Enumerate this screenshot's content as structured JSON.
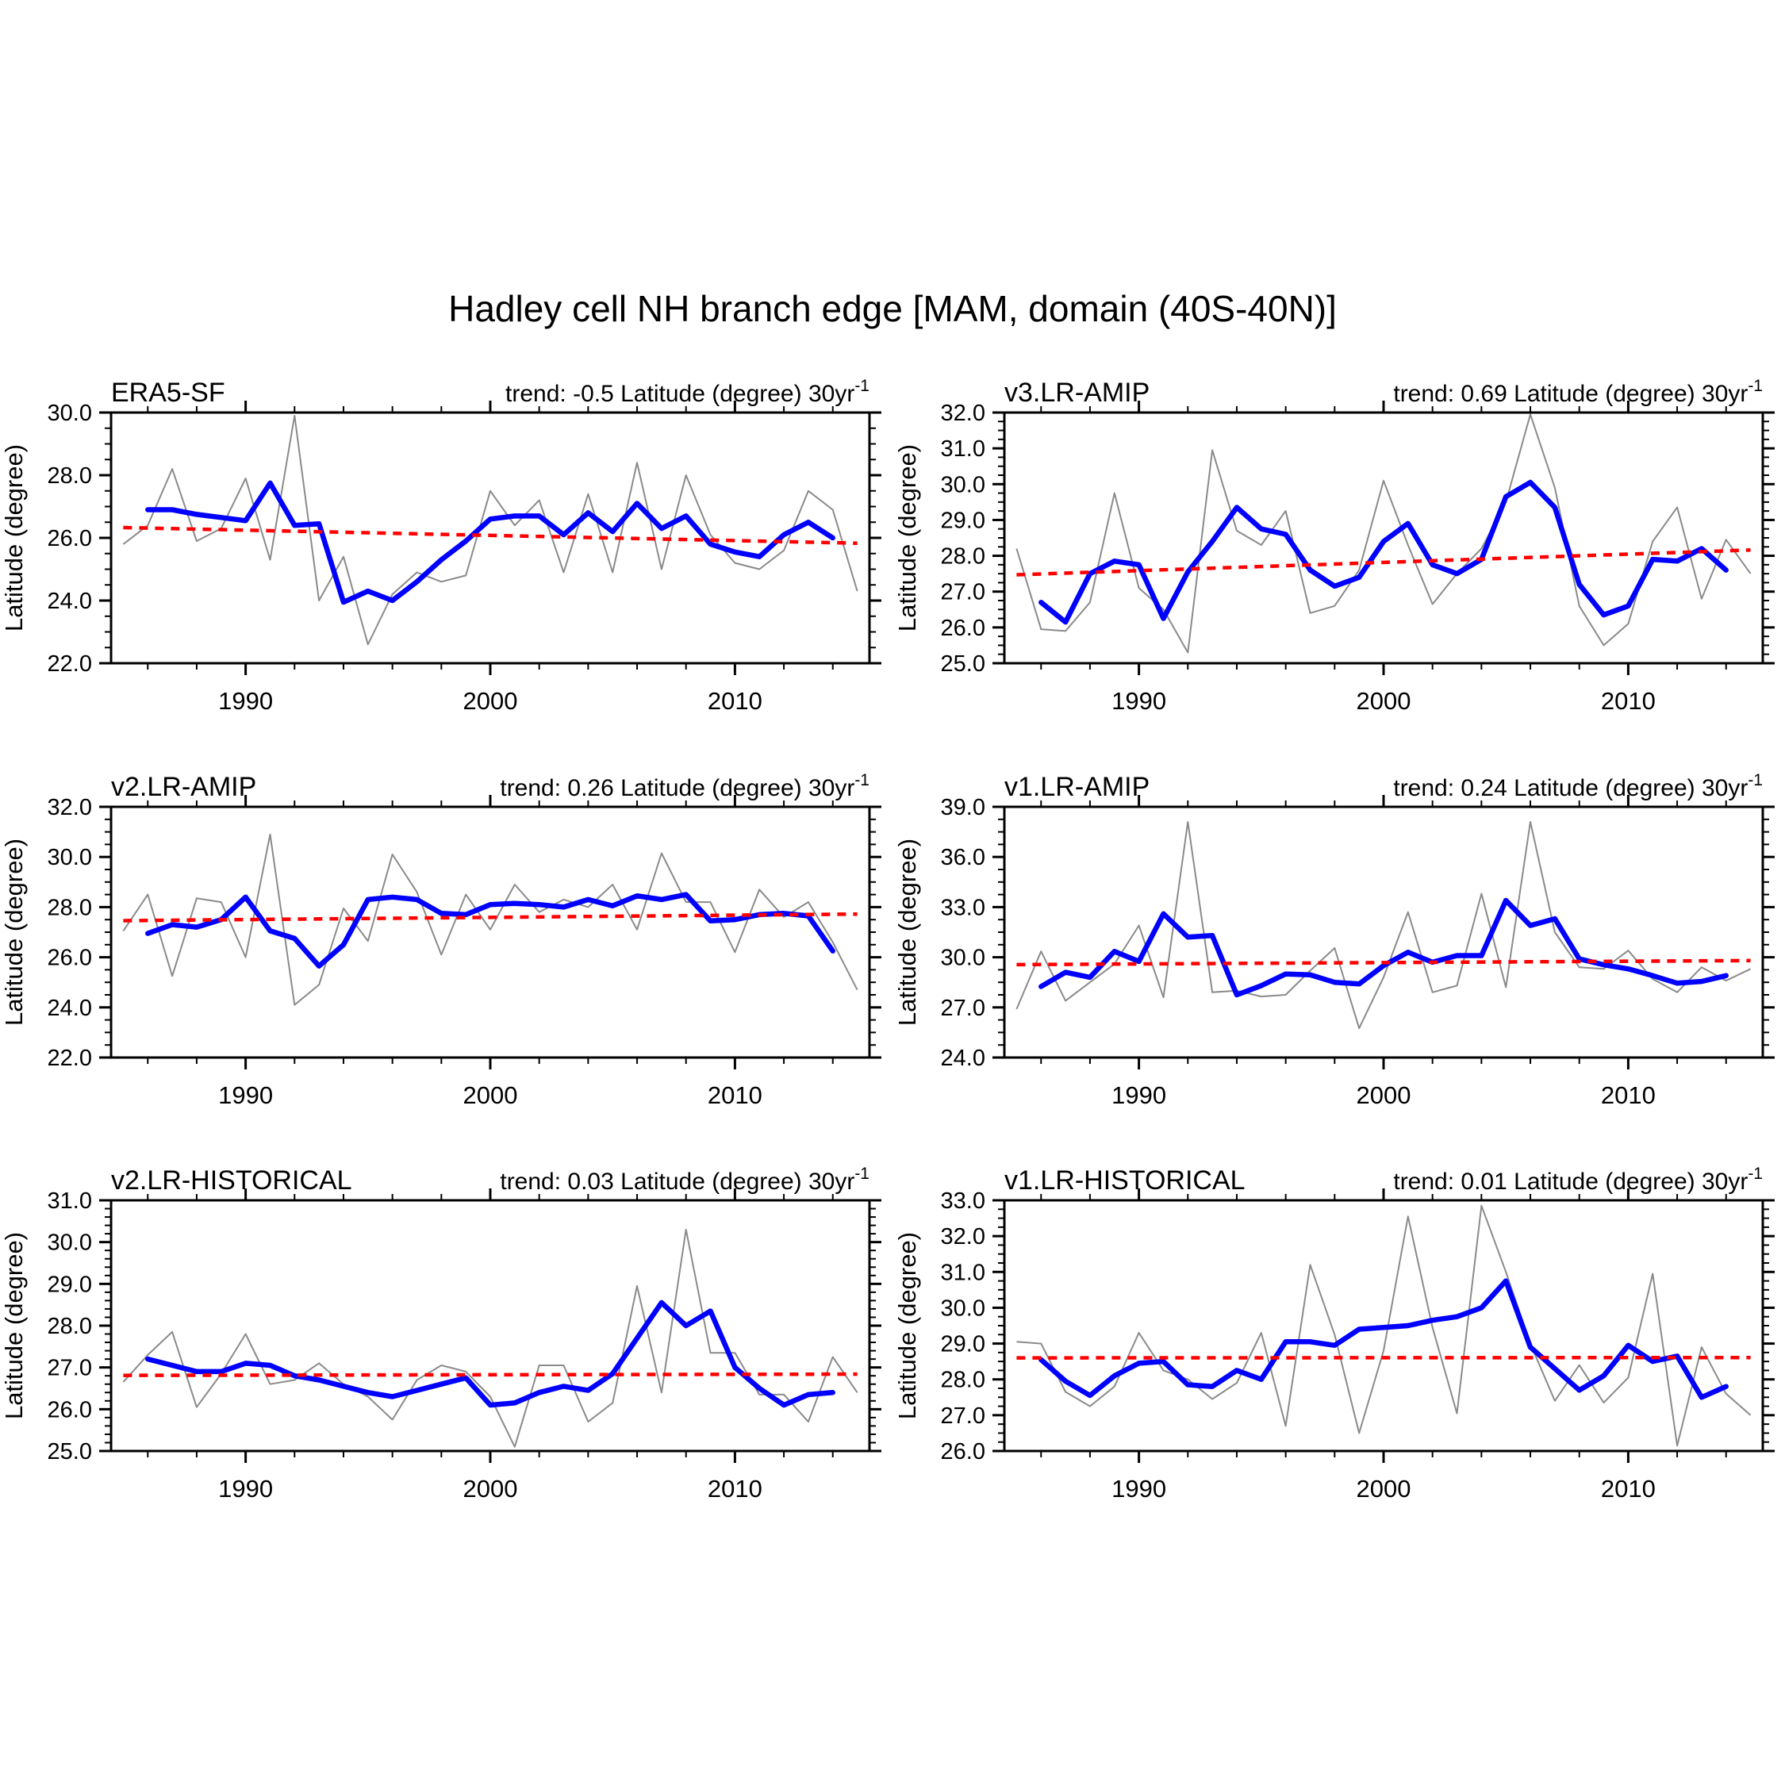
{
  "figure": {
    "title": "Hadley cell NH branch edge [MAM, domain (40S-40N)]",
    "background": "#ffffff",
    "colors": {
      "raw": "#8a8a8a",
      "smoothed": "#0000ff",
      "trend": "#ff0000",
      "axis": "#000000"
    }
  },
  "chart_data": [
    {
      "type": "line",
      "title": "ERA5-SF",
      "trend_label": "trend: -0.5 Latitude (degree) 30yr",
      "trend_exponent": "-1",
      "trend_value_per_30yr": -0.5,
      "ylabel": "Latitude (degree)",
      "ylim": [
        22.0,
        30.0
      ],
      "ytick_step": 2.0,
      "yminor_step": 0.5,
      "xlim": [
        1984.5,
        2015.5
      ],
      "xticks": [
        1990,
        2000,
        2010
      ],
      "xminor_step": 2,
      "legend_position": "none",
      "grid": false,
      "series": [
        {
          "name": "annual",
          "color_key": "raw",
          "x": [
            1985,
            1986,
            1987,
            1988,
            1989,
            1990,
            1991,
            1992,
            1993,
            1994,
            1995,
            1996,
            1997,
            1998,
            1999,
            2000,
            2001,
            2002,
            2003,
            2004,
            2005,
            2006,
            2007,
            2008,
            2009,
            2010,
            2011,
            2012,
            2013,
            2014,
            2015
          ],
          "values": [
            25.8,
            26.4,
            28.2,
            25.9,
            26.3,
            27.9,
            25.3,
            29.9,
            24.0,
            25.4,
            22.6,
            24.2,
            24.9,
            24.6,
            24.8,
            27.5,
            26.4,
            27.2,
            24.9,
            27.4,
            24.9,
            28.4,
            25.0,
            28.0,
            26.1,
            25.2,
            25.0,
            25.6,
            27.5,
            26.9,
            24.3
          ]
        },
        {
          "name": "smoothed",
          "color_key": "smoothed",
          "x": [
            1986,
            1987,
            1988,
            1989,
            1990,
            1991,
            1992,
            1993,
            1994,
            1995,
            1996,
            1997,
            1998,
            1999,
            2000,
            2001,
            2002,
            2003,
            2004,
            2005,
            2006,
            2007,
            2008,
            2009,
            2010,
            2011,
            2012,
            2013,
            2014
          ],
          "values": [
            26.9,
            26.9,
            26.75,
            26.65,
            26.55,
            27.75,
            26.4,
            26.45,
            23.95,
            24.3,
            24.0,
            24.6,
            25.3,
            25.9,
            26.6,
            26.7,
            26.7,
            26.1,
            26.8,
            26.2,
            27.1,
            26.3,
            26.7,
            25.8,
            25.55,
            25.4,
            26.1,
            26.5,
            26.0
          ]
        },
        {
          "name": "trend",
          "color_key": "trend",
          "x": [
            1985,
            2015
          ],
          "values": [
            26.33,
            25.83
          ]
        }
      ]
    },
    {
      "type": "line",
      "title": "v3.LR-AMIP",
      "trend_label": "trend: 0.69 Latitude (degree) 30yr",
      "trend_exponent": "-1",
      "trend_value_per_30yr": 0.69,
      "ylabel": "Latitude (degree)",
      "ylim": [
        25.0,
        32.0
      ],
      "ytick_step": 1.0,
      "yminor_step": 0.25,
      "xlim": [
        1984.5,
        2015.5
      ],
      "xticks": [
        1990,
        2000,
        2010
      ],
      "xminor_step": 2,
      "legend_position": "none",
      "grid": false,
      "series": [
        {
          "name": "annual",
          "color_key": "raw",
          "x": [
            1985,
            1986,
            1987,
            1988,
            1989,
            1990,
            1991,
            1992,
            1993,
            1994,
            1995,
            1996,
            1997,
            1998,
            1999,
            2000,
            2001,
            2002,
            2003,
            2004,
            2005,
            2006,
            2007,
            2008,
            2009,
            2010,
            2011,
            2012,
            2013,
            2014,
            2015
          ],
          "values": [
            28.2,
            25.95,
            25.9,
            26.7,
            29.75,
            27.1,
            26.5,
            25.3,
            30.95,
            28.7,
            28.3,
            29.25,
            26.4,
            26.6,
            27.6,
            30.1,
            28.3,
            26.65,
            27.5,
            28.2,
            29.5,
            31.95,
            29.9,
            26.6,
            25.5,
            26.1,
            28.4,
            29.35,
            26.8,
            28.45,
            27.5
          ]
        },
        {
          "name": "smoothed",
          "color_key": "smoothed",
          "x": [
            1986,
            1987,
            1988,
            1989,
            1990,
            1991,
            1992,
            1993,
            1994,
            1995,
            1996,
            1997,
            1998,
            1999,
            2000,
            2001,
            2002,
            2003,
            2004,
            2005,
            2006,
            2007,
            2008,
            2009,
            2010,
            2011,
            2012,
            2013,
            2014
          ],
          "values": [
            26.7,
            26.15,
            27.5,
            27.85,
            27.75,
            26.25,
            27.55,
            28.4,
            29.35,
            28.75,
            28.6,
            27.6,
            27.15,
            27.4,
            28.4,
            28.9,
            27.75,
            27.5,
            27.9,
            29.65,
            30.05,
            29.35,
            27.2,
            26.35,
            26.6,
            27.9,
            27.85,
            28.2,
            27.6
          ]
        },
        {
          "name": "trend",
          "color_key": "trend",
          "x": [
            1985,
            2015
          ],
          "values": [
            27.47,
            28.16
          ]
        }
      ]
    },
    {
      "type": "line",
      "title": "v2.LR-AMIP",
      "trend_label": "trend: 0.26 Latitude (degree) 30yr",
      "trend_exponent": "-1",
      "trend_value_per_30yr": 0.26,
      "ylabel": "Latitude (degree)",
      "ylim": [
        22.0,
        32.0
      ],
      "ytick_step": 2.0,
      "yminor_step": 0.5,
      "xlim": [
        1984.5,
        2015.5
      ],
      "xticks": [
        1990,
        2000,
        2010
      ],
      "xminor_step": 2,
      "legend_position": "none",
      "grid": false,
      "series": [
        {
          "name": "annual",
          "color_key": "raw",
          "x": [
            1985,
            1986,
            1987,
            1988,
            1989,
            1990,
            1991,
            1992,
            1993,
            1994,
            1995,
            1996,
            1997,
            1998,
            1999,
            2000,
            2001,
            2002,
            2003,
            2004,
            2005,
            2006,
            2007,
            2008,
            2009,
            2010,
            2011,
            2012,
            2013,
            2014,
            2015
          ],
          "values": [
            27.05,
            28.5,
            25.25,
            28.35,
            28.2,
            26.0,
            30.9,
            24.1,
            24.9,
            27.95,
            26.65,
            30.1,
            28.6,
            26.1,
            28.5,
            27.1,
            28.9,
            27.8,
            28.3,
            28.0,
            28.9,
            27.1,
            30.15,
            28.2,
            28.2,
            26.2,
            28.7,
            27.6,
            28.2,
            26.6,
            24.7
          ]
        },
        {
          "name": "smoothed",
          "color_key": "smoothed",
          "x": [
            1986,
            1987,
            1988,
            1989,
            1990,
            1991,
            1992,
            1993,
            1994,
            1995,
            1996,
            1997,
            1998,
            1999,
            2000,
            2001,
            2002,
            2003,
            2004,
            2005,
            2006,
            2007,
            2008,
            2009,
            2010,
            2011,
            2012,
            2013,
            2014
          ],
          "values": [
            26.95,
            27.3,
            27.2,
            27.5,
            28.4,
            27.05,
            26.75,
            25.65,
            26.5,
            28.3,
            28.4,
            28.3,
            27.75,
            27.7,
            28.1,
            28.15,
            28.1,
            28.0,
            28.3,
            28.05,
            28.45,
            28.3,
            28.5,
            27.45,
            27.5,
            27.7,
            27.75,
            27.65,
            26.25
          ]
        },
        {
          "name": "trend",
          "color_key": "trend",
          "x": [
            1985,
            2015
          ],
          "values": [
            27.46,
            27.72
          ]
        }
      ]
    },
    {
      "type": "line",
      "title": "v1.LR-AMIP",
      "trend_label": "trend: 0.24 Latitude (degree) 30yr",
      "trend_exponent": "-1",
      "trend_value_per_30yr": 0.24,
      "ylabel": "Latitude (degree)",
      "ylim": [
        24.0,
        39.0
      ],
      "ytick_step": 3.0,
      "yminor_step": 0.75,
      "xlim": [
        1984.5,
        2015.5
      ],
      "xticks": [
        1990,
        2000,
        2010
      ],
      "xminor_step": 2,
      "legend_position": "none",
      "grid": false,
      "series": [
        {
          "name": "annual",
          "color_key": "raw",
          "x": [
            1985,
            1986,
            1987,
            1988,
            1989,
            1990,
            1991,
            1992,
            1993,
            1994,
            1995,
            1996,
            1997,
            1998,
            1999,
            2000,
            2001,
            2002,
            2003,
            2004,
            2005,
            2006,
            2007,
            2008,
            2009,
            2010,
            2011,
            2012,
            2013,
            2014,
            2015
          ],
          "values": [
            26.9,
            30.35,
            27.4,
            28.5,
            29.6,
            31.9,
            27.6,
            38.1,
            27.9,
            28.0,
            27.65,
            27.75,
            29.2,
            30.55,
            25.75,
            28.8,
            32.7,
            27.9,
            28.3,
            33.8,
            28.2,
            38.1,
            31.5,
            29.4,
            29.3,
            30.4,
            28.7,
            27.9,
            29.4,
            28.6,
            29.3
          ]
        },
        {
          "name": "smoothed",
          "color_key": "smoothed",
          "x": [
            1986,
            1987,
            1988,
            1989,
            1990,
            1991,
            1992,
            1993,
            1994,
            1995,
            1996,
            1997,
            1998,
            1999,
            2000,
            2001,
            2002,
            2003,
            2004,
            2005,
            2006,
            2007,
            2008,
            2009,
            2010,
            2011,
            2012,
            2013,
            2014
          ],
          "values": [
            28.25,
            29.1,
            28.8,
            30.35,
            29.75,
            32.6,
            31.2,
            31.3,
            27.75,
            28.3,
            29.0,
            28.95,
            28.5,
            28.4,
            29.5,
            30.3,
            29.7,
            30.1,
            30.1,
            33.4,
            31.9,
            32.3,
            29.9,
            29.55,
            29.3,
            28.9,
            28.45,
            28.55,
            28.9
          ]
        },
        {
          "name": "trend",
          "color_key": "trend",
          "x": [
            1985,
            2015
          ],
          "values": [
            29.56,
            29.8
          ]
        }
      ]
    },
    {
      "type": "line",
      "title": "v2.LR-HISTORICAL",
      "trend_label": "trend: 0.03 Latitude (degree) 30yr",
      "trend_exponent": "-1",
      "trend_value_per_30yr": 0.03,
      "ylabel": "Latitude (degree)",
      "ylim": [
        25.0,
        31.0
      ],
      "ytick_step": 1.0,
      "yminor_step": 0.2,
      "xlim": [
        1984.5,
        2015.5
      ],
      "xticks": [
        1990,
        2000,
        2010
      ],
      "xminor_step": 2,
      "legend_position": "none",
      "grid": false,
      "series": [
        {
          "name": "annual",
          "color_key": "raw",
          "x": [
            1985,
            1986,
            1987,
            1988,
            1989,
            1990,
            1991,
            1992,
            1993,
            1994,
            1995,
            1996,
            1997,
            1998,
            1999,
            2000,
            2001,
            2002,
            2003,
            2004,
            2005,
            2006,
            2007,
            2008,
            2009,
            2010,
            2011,
            2012,
            2013,
            2014,
            2015
          ],
          "values": [
            26.65,
            27.3,
            27.85,
            26.05,
            26.85,
            27.8,
            26.6,
            26.7,
            27.1,
            26.6,
            26.3,
            25.75,
            26.7,
            27.05,
            26.9,
            26.3,
            25.1,
            27.05,
            27.05,
            25.7,
            26.15,
            28.95,
            26.4,
            30.3,
            27.35,
            27.35,
            26.35,
            26.35,
            25.7,
            27.25,
            26.4
          ]
        },
        {
          "name": "smoothed",
          "color_key": "smoothed",
          "x": [
            1986,
            1987,
            1988,
            1989,
            1990,
            1991,
            1992,
            1993,
            1994,
            1995,
            1996,
            1997,
            1998,
            1999,
            2000,
            2001,
            2002,
            2003,
            2004,
            2005,
            2006,
            2007,
            2008,
            2009,
            2010,
            2011,
            2012,
            2013,
            2014
          ],
          "values": [
            27.2,
            27.05,
            26.9,
            26.9,
            27.1,
            27.05,
            26.8,
            26.7,
            26.55,
            26.4,
            26.3,
            26.45,
            26.6,
            26.75,
            26.1,
            26.15,
            26.4,
            26.55,
            26.45,
            26.85,
            27.7,
            28.55,
            28.0,
            28.35,
            27.0,
            26.5,
            26.1,
            26.35,
            26.4
          ]
        },
        {
          "name": "trend",
          "color_key": "trend",
          "x": [
            1985,
            2015
          ],
          "values": [
            26.81,
            26.84
          ]
        }
      ]
    },
    {
      "type": "line",
      "title": "v1.LR-HISTORICAL",
      "trend_label": "trend: 0.01 Latitude (degree) 30yr",
      "trend_exponent": "-1",
      "trend_value_per_30yr": 0.01,
      "ylabel": "Latitude (degree)",
      "ylim": [
        26.0,
        33.0
      ],
      "ytick_step": 1.0,
      "yminor_step": 0.25,
      "xlim": [
        1984.5,
        2015.5
      ],
      "xticks": [
        1990,
        2000,
        2010
      ],
      "xminor_step": 2,
      "legend_position": "none",
      "grid": false,
      "series": [
        {
          "name": "annual",
          "color_key": "raw",
          "x": [
            1985,
            1986,
            1987,
            1988,
            1989,
            1990,
            1991,
            1992,
            1993,
            1994,
            1995,
            1996,
            1997,
            1998,
            1999,
            2000,
            2001,
            2002,
            2003,
            2004,
            2005,
            2006,
            2007,
            2008,
            2009,
            2010,
            2011,
            2012,
            2013,
            2014,
            2015
          ],
          "values": [
            29.05,
            29.0,
            27.65,
            27.25,
            27.8,
            29.3,
            28.25,
            28.0,
            27.45,
            27.9,
            29.3,
            26.7,
            31.2,
            29.25,
            26.5,
            28.8,
            32.55,
            29.45,
            27.05,
            32.85,
            31.0,
            29.0,
            27.4,
            28.4,
            27.35,
            28.05,
            30.95,
            26.15,
            28.9,
            27.6,
            27.0
          ]
        },
        {
          "name": "smoothed",
          "color_key": "smoothed",
          "x": [
            1986,
            1987,
            1988,
            1989,
            1990,
            1991,
            1992,
            1993,
            1994,
            1995,
            1996,
            1997,
            1998,
            1999,
            2000,
            2001,
            2002,
            2003,
            2004,
            2005,
            2006,
            2007,
            2008,
            2009,
            2010,
            2011,
            2012,
            2013,
            2014
          ],
          "values": [
            28.55,
            27.95,
            27.55,
            28.1,
            28.45,
            28.5,
            27.85,
            27.8,
            28.25,
            28.0,
            29.05,
            29.05,
            28.95,
            29.4,
            29.45,
            29.5,
            29.65,
            29.75,
            30.0,
            30.75,
            28.9,
            28.3,
            27.7,
            28.1,
            28.95,
            28.5,
            28.65,
            27.5,
            27.8
          ]
        },
        {
          "name": "trend",
          "color_key": "trend",
          "x": [
            1985,
            2015
          ],
          "values": [
            28.6,
            28.61
          ]
        }
      ]
    }
  ]
}
